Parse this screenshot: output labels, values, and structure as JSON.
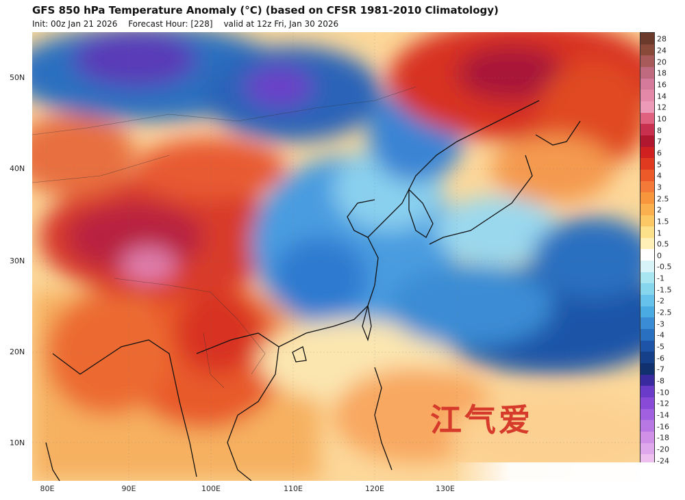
{
  "header": {
    "title": "GFS 850 hPa Temperature Anomaly (°C) (based on CFSR 1981-2010 Climatology)",
    "init": "Init: 00z Jan 21 2026",
    "forecast_hour": "Forecast Hour: [228]",
    "valid": "valid at 12z Fri, Jan 30 2026"
  },
  "watermark": "江气爱",
  "axes": {
    "latitudes": [
      "50N",
      "40N",
      "30N",
      "20N",
      "10N"
    ],
    "longitudes": [
      "80E",
      "90E",
      "100E",
      "110E",
      "120E",
      "130E"
    ]
  },
  "colorbar": {
    "labels": [
      "28",
      "24",
      "20",
      "18",
      "16",
      "14",
      "12",
      "10",
      "8",
      "7",
      "6",
      "5",
      "4",
      "3",
      "2.5",
      "2",
      "1.5",
      "1",
      "0.5",
      "0",
      "-0.5",
      "-1",
      "-1.5",
      "-2",
      "-2.5",
      "-3",
      "-4",
      "-5",
      "-6",
      "-7",
      "-8",
      "-10",
      "-12",
      "-14",
      "-16",
      "-18",
      "-20",
      "-24"
    ],
    "colors": [
      "#6b3a2a",
      "#8a4a3a",
      "#a85a5a",
      "#c06a80",
      "#d57a9a",
      "#e48aa8",
      "#ec9ab8",
      "#e06080",
      "#c83050",
      "#b01830",
      "#d02020",
      "#e03a20",
      "#ec5a2a",
      "#f47a3a",
      "#f8963e",
      "#fbb050",
      "#fcc866",
      "#fde08a",
      "#fff0b8",
      "#ffffff",
      "#d8f4f8",
      "#a8e6f2",
      "#86d6ee",
      "#66c2ea",
      "#4aaae2",
      "#3a8cd4",
      "#2a70c0",
      "#1e54a8",
      "#17408a",
      "#10306e",
      "#3a2aa0",
      "#6a3ac8",
      "#8a4ad8",
      "#a060e0",
      "#b878e4",
      "#d090e8",
      "#e0a8ec",
      "#eec0f0"
    ]
  }
}
